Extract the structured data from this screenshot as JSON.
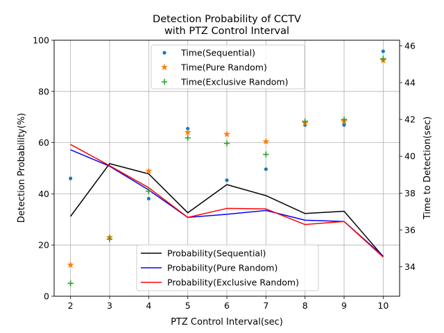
{
  "chart_data": {
    "type": "line",
    "title": [
      "Detection Probability of CCTV",
      "with PTZ Control Interval"
    ],
    "xlabel": "PTZ Control Interval(sec)",
    "ylabel": "Detection Probability(%)",
    "y2label": "Time to Detection(sec)",
    "x": [
      2,
      3,
      4,
      5,
      6,
      7,
      8,
      9,
      10
    ],
    "xticks": [
      "2",
      "3",
      "4",
      "5",
      "6",
      "7",
      "8",
      "9",
      "10"
    ],
    "ylim": [
      0,
      100
    ],
    "yticks": [
      "0",
      "20",
      "40",
      "60",
      "80",
      "100"
    ],
    "y2lim": [
      32.4,
      46.3
    ],
    "y2ticks": [
      "34",
      "36",
      "38",
      "40",
      "42",
      "44",
      "46"
    ],
    "grid": true,
    "series": [
      {
        "name": "Probability(Sequential)",
        "axis": "left",
        "kind": "line",
        "color": "#000000",
        "values": [
          31.2,
          51.8,
          47.8,
          32.6,
          43.6,
          39.3,
          32.3,
          33.2,
          15.5
        ]
      },
      {
        "name": "Probability(Pure Random)",
        "axis": "left",
        "kind": "line",
        "color": "#0000ff",
        "values": [
          57.2,
          50.8,
          41.5,
          30.8,
          32.0,
          33.5,
          29.7,
          29.2,
          15.7
        ]
      },
      {
        "name": "Probability(Exclusive Random)",
        "axis": "left",
        "kind": "line",
        "color": "#ff0000",
        "values": [
          59.3,
          51.0,
          42.4,
          30.8,
          34.3,
          34.1,
          28.0,
          29.2,
          15.3
        ]
      },
      {
        "name": "Time(Sequential)",
        "axis": "right",
        "kind": "scatter",
        "marker": "dot",
        "color": "#1f77b4",
        "values": [
          38.8,
          35.6,
          37.7,
          41.5,
          38.7,
          39.3,
          41.7,
          41.7,
          45.7
        ]
      },
      {
        "name": "Time(Pure Random)",
        "axis": "right",
        "kind": "scatter",
        "marker": "star",
        "color": "#ff7f0e",
        "values": [
          34.1,
          35.6,
          39.2,
          41.3,
          41.2,
          40.8,
          41.8,
          41.9,
          45.2
        ]
      },
      {
        "name": "Time(Exclusive Random)",
        "axis": "right",
        "kind": "scatter",
        "marker": "plus",
        "color": "#2ca02c",
        "values": [
          33.1,
          35.5,
          38.1,
          41.0,
          40.7,
          40.1,
          41.9,
          42.0,
          45.3
        ]
      }
    ],
    "legends": [
      "upper-center",
      "lower-center"
    ]
  }
}
